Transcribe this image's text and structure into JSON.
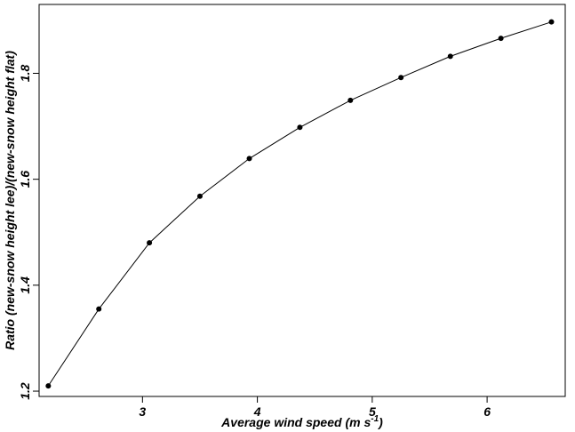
{
  "chart_data": {
    "type": "line",
    "title": "",
    "xlabel": "Average wind speed (m s-1)",
    "xlabel_main": "Average wind speed (m s",
    "xlabel_sup": "-1",
    "xlabel_close": ")",
    "ylabel": "Ratio (new-snow height lee)/(new-snow height flat)",
    "xlim": [
      2.1,
      6.68
    ],
    "ylim": [
      1.19,
      1.93
    ],
    "xticks": [
      3,
      4,
      5,
      6
    ],
    "xtick_labels": [
      "3",
      "4",
      "5",
      "6"
    ],
    "yticks": [
      1.2,
      1.4,
      1.6,
      1.8
    ],
    "ytick_labels": [
      "1.2",
      "1.4",
      "1.6",
      "1.8"
    ],
    "grid": false,
    "series": [
      {
        "x": [
          2.18,
          2.62,
          3.06,
          3.5,
          3.93,
          4.37,
          4.81,
          5.25,
          5.68,
          6.12,
          6.56
        ],
        "y": [
          1.21,
          1.355,
          1.48,
          1.568,
          1.639,
          1.698,
          1.749,
          1.792,
          1.832,
          1.866,
          1.897
        ],
        "marker": "circle",
        "color": "#000000"
      }
    ]
  }
}
